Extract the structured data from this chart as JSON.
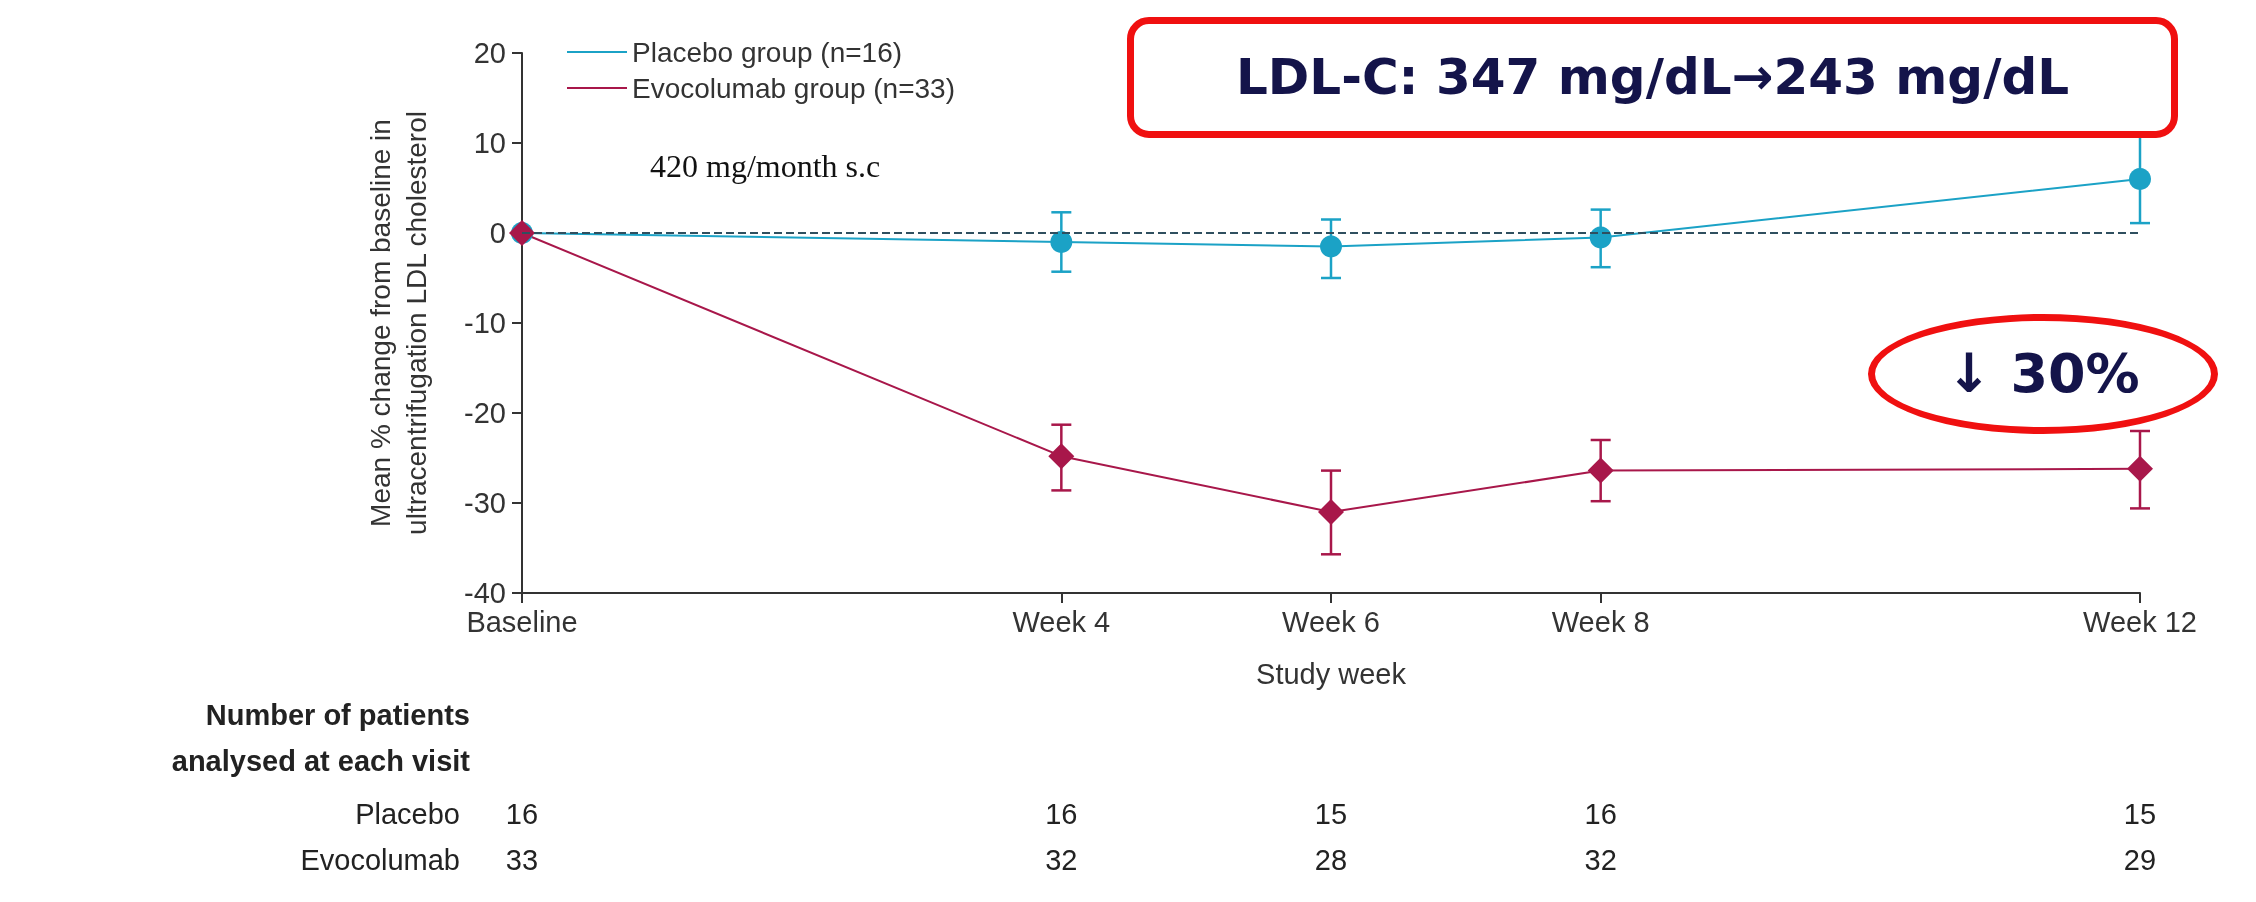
{
  "chart_data": {
    "type": "line",
    "xlabel": "Study week",
    "ylabel": "Mean % change from baseline in\nultracentrifugation LDL cholesterol",
    "categories": [
      "Baseline",
      null,
      null,
      null,
      "Week 4",
      null,
      "Week 6",
      null,
      "Week 8",
      null,
      null,
      null,
      "Week 12"
    ],
    "ylim": [
      -40,
      20
    ],
    "yticks": [
      -40,
      -30,
      -20,
      -10,
      0,
      10,
      20
    ],
    "grid": false,
    "legend": "top left",
    "line_style": "solid",
    "series": [
      {
        "name": "Placebo group (n=16)",
        "color": "#1ba2c6",
        "marker": "circle",
        "values": [
          0,
          null,
          null,
          null,
          -1,
          null,
          -1.5,
          null,
          -0.5,
          null,
          null,
          null,
          6
        ],
        "errors": [
          null,
          null,
          null,
          null,
          [
            -4.3,
            2.3
          ],
          null,
          [
            -5,
            1.5
          ],
          null,
          [
            -3.8,
            2.6
          ],
          null,
          null,
          null,
          [
            1.1,
            10.7
          ]
        ]
      },
      {
        "name": "Evocolumab group (n=33)",
        "color": "#a8174a",
        "marker": "diamond",
        "values": [
          0,
          null,
          null,
          null,
          -24.8,
          null,
          -31,
          null,
          -26.4,
          null,
          null,
          null,
          -26.2
        ],
        "errors": [
          null,
          null,
          null,
          null,
          [
            -28.6,
            -21.3
          ],
          null,
          [
            -35.7,
            -26.4
          ],
          null,
          [
            -29.8,
            -23
          ],
          null,
          null,
          null,
          [
            -30.6,
            -22
          ]
        ]
      }
    ],
    "ref_lines": [
      {
        "axis": "y",
        "value": 0,
        "color": "#2f4f5f",
        "line_style": "dashed"
      }
    ],
    "annotations": [
      "420 mg/month s.c",
      "LDL-C: 347 mg/dL→243 mg/dL",
      "↓ 30%",
      "Number of patients\nanalysed at each visit",
      "Placebo",
      "16",
      "16",
      "15",
      "16",
      "15",
      "Evocolumab",
      "33",
      "32",
      "28",
      "32",
      "29"
    ]
  }
}
